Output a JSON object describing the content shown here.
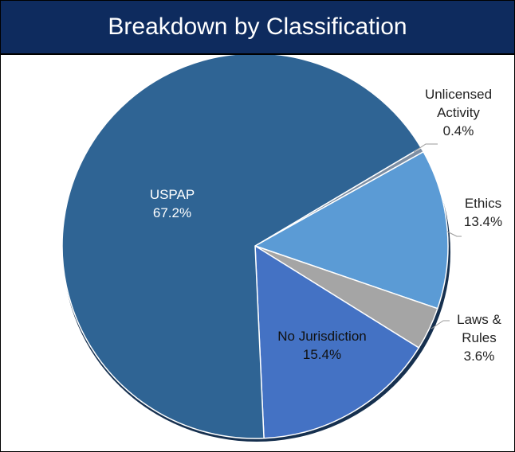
{
  "chart_data": {
    "type": "pie",
    "title": "Breakdown by Classification",
    "categories": [
      "Unlicensed Activity",
      "Ethics",
      "Laws & Rules",
      "No Jurisdiction",
      "USPAP"
    ],
    "values": [
      0.4,
      13.4,
      3.6,
      15.4,
      67.2
    ],
    "value_labels": [
      "0.4%",
      "13.4%",
      "3.6%",
      "15.4%",
      "67.2%"
    ],
    "colors": [
      "#7d8ea3",
      "#5b9bd5",
      "#a5a5a5",
      "#4472c4",
      "#2f6494"
    ]
  }
}
